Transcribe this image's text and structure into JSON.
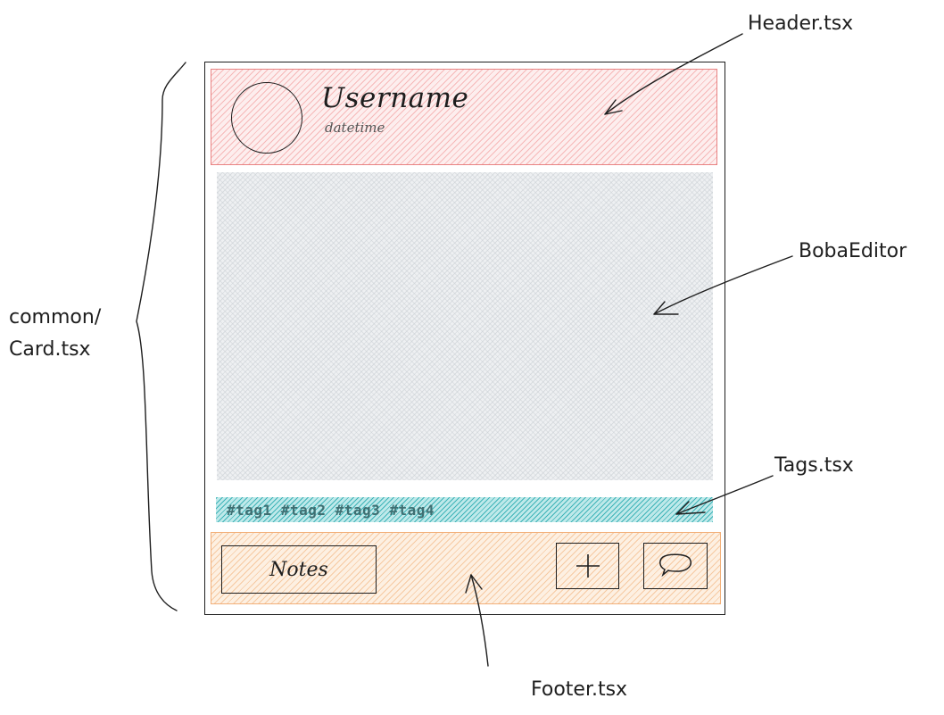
{
  "card": {
    "header": {
      "username": "Username",
      "datetime": "datetime"
    },
    "tags": "#tag1 #tag2 #tag3 #tag4",
    "footer": {
      "notes_label": "Notes"
    }
  },
  "annotations": {
    "header": "Header.tsx",
    "editor": "BobaEditor",
    "tags": "Tags.tsx",
    "footer": "Footer.tsx",
    "card_line1": "common/",
    "card_line2": "Card.tsx"
  },
  "colors": {
    "header_fill": "#fdeeee",
    "editor_fill": "#eef0f2",
    "tags_fill": "#2aa9ae",
    "footer_fill": "#fdf0e2"
  },
  "icons": {
    "avatar": "avatar-circle",
    "add": "plus-icon",
    "comment": "speech-bubble-icon"
  }
}
